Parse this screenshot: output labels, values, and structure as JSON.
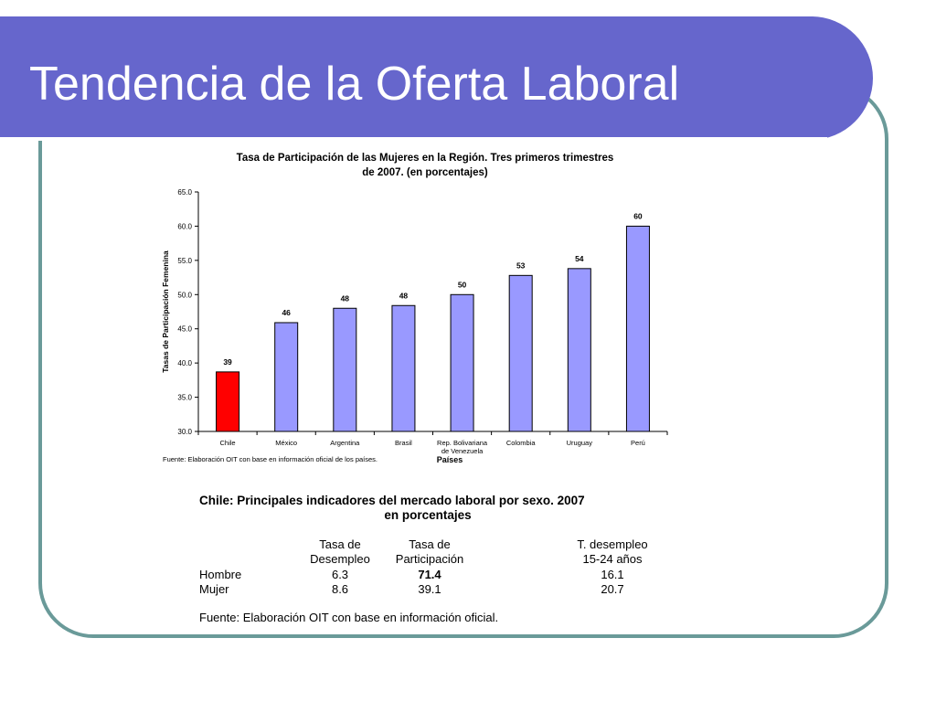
{
  "slide": {
    "title": "Tendencia de la Oferta Laboral",
    "colors": {
      "title_bar": "#6666cc",
      "frame_border": "#6a9a99"
    }
  },
  "chart_data": {
    "type": "bar",
    "title": "Tasa de Participación de las Mujeres en la Región. Tres primeros trimestres",
    "title_line2": "de 2007.  (en porcentajes)",
    "ylabel": "Tasas de Participación Femenina",
    "xlabel": "Países",
    "ylim": [
      30.0,
      65.0
    ],
    "yticks": [
      "65.0",
      "60.0",
      "55.0",
      "50.0",
      "45.0",
      "40.0",
      "35.0",
      "30.0"
    ],
    "ytick_values": [
      65,
      60,
      55,
      50,
      45,
      40,
      35,
      30
    ],
    "categories": [
      "Chile",
      "México",
      "Argentina",
      "Brasil",
      "Rep. Bolivariana de Venezuela",
      "Colombia",
      "Uruguay",
      "Perú"
    ],
    "category_lines": [
      [
        "Chile"
      ],
      [
        "México"
      ],
      [
        "Argentina"
      ],
      [
        "Brasil"
      ],
      [
        "Rep. Bolivariana",
        "de Venezuela"
      ],
      [
        "Colombia"
      ],
      [
        "Uruguay"
      ],
      [
        "Perú"
      ]
    ],
    "values": [
      38.7,
      45.9,
      48.0,
      48.4,
      50.0,
      52.8,
      53.8,
      60.0
    ],
    "data_labels": [
      "39",
      "46",
      "48",
      "48",
      "50",
      "53",
      "54",
      "60"
    ],
    "bar_colors": [
      "#ff0000",
      "#9999ff",
      "#9999ff",
      "#9999ff",
      "#9999ff",
      "#9999ff",
      "#9999ff",
      "#9999ff"
    ],
    "source": "Fuente: Elaboración OIT con base en información oficial de los países.",
    "grid": false,
    "legend": "none"
  },
  "table": {
    "title_line1": "Chile: Principales indicadores del mercado laboral por sexo. 2007",
    "title_line2": "en porcentajes",
    "headers": [
      [
        "Tasa de",
        "Desempleo"
      ],
      [
        "Tasa de",
        "Participación"
      ],
      [
        "T. desempleo",
        "15-24 años"
      ]
    ],
    "rows": [
      {
        "label": "Hombre",
        "values": [
          "6.3",
          "71.4",
          "16.1"
        ]
      },
      {
        "label": "Mujer",
        "values": [
          "8.6",
          "39.1",
          "20.7"
        ]
      }
    ],
    "source": "Fuente: Elaboración OIT con base en información oficial."
  }
}
